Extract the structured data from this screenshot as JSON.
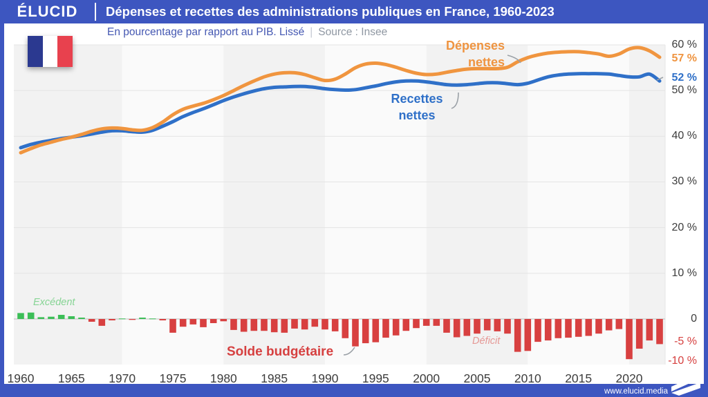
{
  "header": {
    "logo": "ÉLUCID",
    "title": "Dépenses et recettes des administrations publiques en France, 1960-2023"
  },
  "subtitle": {
    "left": "En pourcentage par rapport au PIB. Lissé",
    "separator": "|",
    "right": "Source : Insee"
  },
  "footer": {
    "url": "www.elucid.media"
  },
  "colors": {
    "theme_blue": "#3D56C0",
    "line_orange": "#F0953F",
    "line_blue": "#2F70C8",
    "bar_green": "#3CBE57",
    "bar_red": "#D84040",
    "band_gray": "#F2F2F2",
    "band_light": "#FAFAFA",
    "grid": "#E4E4E4",
    "zero_line": "#C9C9C9",
    "callout_gray": "#9AA0A6"
  },
  "chart_data": {
    "type": "line+bar",
    "title": "Dépenses et recettes des administrations publiques en France, 1960-2023",
    "subtitle": "En pourcentage par rapport au PIB. Lissé",
    "source": "Source : Insee",
    "x_range": [
      1960,
      2023
    ],
    "y_axis_side": "right",
    "grid": true,
    "background_bands": "alternating decades",
    "years": [
      1960,
      1961,
      1962,
      1963,
      1964,
      1965,
      1966,
      1967,
      1968,
      1969,
      1970,
      1971,
      1972,
      1973,
      1974,
      1975,
      1976,
      1977,
      1978,
      1979,
      1980,
      1981,
      1982,
      1983,
      1984,
      1985,
      1986,
      1987,
      1988,
      1989,
      1990,
      1991,
      1992,
      1993,
      1994,
      1995,
      1996,
      1997,
      1998,
      1999,
      2000,
      2001,
      2002,
      2003,
      2004,
      2005,
      2006,
      2007,
      2008,
      2009,
      2010,
      2011,
      2012,
      2013,
      2014,
      2015,
      2016,
      2017,
      2018,
      2019,
      2020,
      2021,
      2022,
      2023
    ],
    "series": [
      {
        "name": "Dépenses nettes",
        "type": "line",
        "color": "#F0953F",
        "end_label": "57 %",
        "values": [
          36.4,
          37.3,
          38.1,
          38.7,
          39.3,
          39.8,
          40.4,
          41.1,
          41.6,
          41.8,
          41.7,
          41.4,
          41.3,
          41.9,
          43.1,
          44.7,
          45.9,
          46.6,
          47.2,
          48.0,
          48.9,
          50.0,
          51.1,
          52.1,
          53.0,
          53.6,
          53.9,
          53.9,
          53.5,
          52.8,
          52.2,
          52.5,
          53.6,
          55.0,
          55.8,
          56.0,
          55.7,
          55.1,
          54.4,
          53.8,
          53.5,
          53.6,
          54.0,
          54.4,
          54.7,
          54.8,
          54.8,
          54.8,
          55.1,
          56.3,
          57.2,
          57.8,
          58.2,
          58.4,
          58.5,
          58.5,
          58.3,
          58.0,
          57.5,
          58.0,
          59.1,
          59.4,
          58.7,
          57.3
        ]
      },
      {
        "name": "Recettes nettes",
        "type": "line",
        "color": "#2F70C8",
        "end_label": "52 %",
        "values": [
          37.5,
          38.2,
          38.7,
          39.1,
          39.5,
          39.8,
          40.1,
          40.5,
          40.9,
          41.2,
          41.2,
          41.0,
          40.9,
          41.3,
          42.2,
          43.2,
          44.3,
          45.2,
          46.0,
          46.9,
          47.8,
          48.6,
          49.3,
          49.9,
          50.4,
          50.7,
          50.8,
          50.9,
          50.9,
          50.7,
          50.4,
          50.2,
          50.1,
          50.2,
          50.6,
          51.0,
          51.5,
          51.9,
          52.1,
          52.1,
          51.9,
          51.6,
          51.3,
          51.2,
          51.3,
          51.5,
          51.7,
          51.7,
          51.5,
          51.3,
          51.6,
          52.3,
          53.0,
          53.4,
          53.6,
          53.7,
          53.7,
          53.7,
          53.6,
          53.3,
          53.0,
          53.0,
          53.6,
          52.1
        ]
      },
      {
        "name": "Solde budgétaire",
        "type": "bar",
        "color_positive": "#3CBE57",
        "color_negative": "#D84040",
        "values": [
          1.3,
          1.4,
          0.4,
          0.5,
          0.9,
          0.6,
          0.3,
          -0.6,
          -1.5,
          -0.3,
          0.1,
          -0.2,
          0.3,
          0.1,
          -0.3,
          -3.0,
          -1.7,
          -1.2,
          -1.8,
          -0.9,
          -0.5,
          -2.4,
          -2.8,
          -2.6,
          -2.6,
          -2.9,
          -3.0,
          -2.1,
          -2.3,
          -1.7,
          -2.3,
          -2.7,
          -4.2,
          -6.0,
          -5.3,
          -5.1,
          -4.1,
          -3.6,
          -2.6,
          -2.0,
          -1.5,
          -1.5,
          -3.0,
          -4.0,
          -3.7,
          -3.2,
          -2.5,
          -2.7,
          -3.2,
          -7.2,
          -7.0,
          -5.0,
          -4.7,
          -4.2,
          -4.1,
          -3.9,
          -3.7,
          -3.2,
          -2.5,
          -2.2,
          -8.8,
          -6.5,
          -4.7,
          -5.5
        ]
      }
    ],
    "right_axis_ticks": [
      {
        "label": "60 %",
        "value": 60,
        "style": "dark"
      },
      {
        "label": "57 %",
        "value": 57,
        "style": "orange"
      },
      {
        "label": "52 %",
        "value": 52,
        "style": "blue",
        "offset": -5
      },
      {
        "label": "50 %",
        "value": 50,
        "style": "dark"
      },
      {
        "label": "40 %",
        "value": 40,
        "style": "dark"
      },
      {
        "label": "30 %",
        "value": 30,
        "style": "dark"
      },
      {
        "label": "20 %",
        "value": 20,
        "style": "dark"
      },
      {
        "label": "10 %",
        "value": 10,
        "style": "dark"
      },
      {
        "label": "0",
        "value": 0,
        "style": "dark"
      },
      {
        "label": "-5 %",
        "value": -5,
        "style": "red"
      },
      {
        "label": "-10 %",
        "value": -10,
        "style": "red",
        "offset": -5
      }
    ],
    "x_ticks": [
      1960,
      1965,
      1970,
      1975,
      1980,
      1985,
      1990,
      1995,
      2000,
      2005,
      2010,
      2015,
      2020
    ],
    "annotations": {
      "depenses": "Dépenses\nnettes",
      "recettes": "Recettes\nnettes",
      "excedent": "Excédent",
      "deficit": "Déficit",
      "solde": "Solde budgétaire"
    }
  }
}
